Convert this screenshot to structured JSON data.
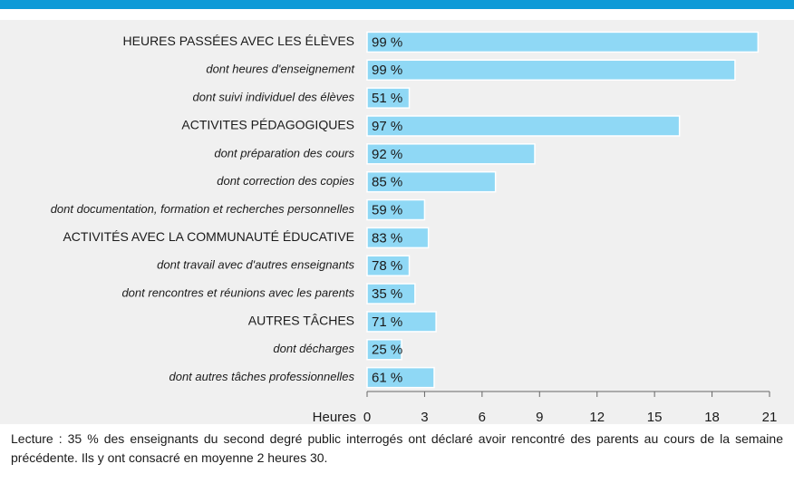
{
  "chart_data": {
    "type": "barh",
    "categories": [
      "HEURES PASSÉES AVEC LES ÉLÈVES",
      "dont heures d'enseignement",
      "dont suivi individuel des élèves",
      "ACTIVITES PÉDAGOGIQUES",
      "dont préparation des cours",
      "dont correction des copies",
      "dont documentation, formation et recherches personnelles",
      "ACTIVITÉS AVEC LA COMMUNAUTÉ ÉDUCATIVE",
      "dont travail avec d'autres enseignants",
      "dont rencontres et réunions avec les parents",
      "AUTRES TÂCHES",
      "dont décharges",
      "dont autres tâches professionnelles"
    ],
    "italic": [
      false,
      true,
      true,
      false,
      true,
      true,
      true,
      false,
      true,
      true,
      false,
      true,
      true
    ],
    "values": [
      20.4,
      19.2,
      2.2,
      16.3,
      8.75,
      6.7,
      3.0,
      3.2,
      2.2,
      2.5,
      3.6,
      1.8,
      3.5
    ],
    "share_labels": [
      "99 %",
      "99 %",
      "51 %",
      "97 %",
      "92 %",
      "85 %",
      "59 %",
      "83 %",
      "78 %",
      "35 %",
      "71 %",
      "25 %",
      "61 %"
    ],
    "color": "#8fd8f5",
    "xlabel": "Heures",
    "xlim": [
      0,
      21
    ],
    "xticks": [
      0,
      3,
      6,
      9,
      12,
      15,
      18,
      21
    ],
    "note": "Lecture : 35 % des enseignants du second degré public interrogés ont déclaré avoir rencontré des parents au cours de la semaine précédente. Ils y ont consacré en moyenne 2 heures 30."
  }
}
